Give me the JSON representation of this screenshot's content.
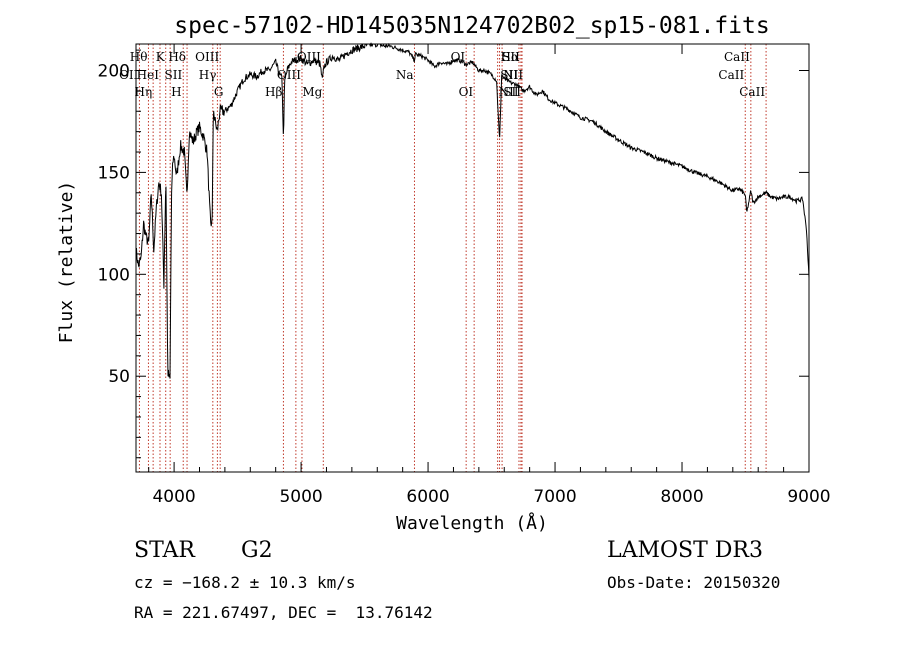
{
  "chart_data": {
    "type": "line",
    "title": "spec-57102-HD145035N124702B02_sp15-081.fits",
    "xlabel": "Wavelength (Å)",
    "ylabel": "Flux (relative)",
    "xlim": [
      3700,
      9000
    ],
    "ylim": [
      3,
      213
    ],
    "xticks": [
      4000,
      5000,
      6000,
      7000,
      8000,
      9000
    ],
    "yticks": [
      50,
      100,
      150,
      200
    ],
    "grid": false,
    "series": [
      {
        "name": "flux",
        "x": [
          3700,
          3720,
          3740,
          3760,
          3780,
          3800,
          3820,
          3840,
          3860,
          3880,
          3900,
          3920,
          3935,
          3950,
          3968,
          3980,
          3990,
          4000,
          4020,
          4050,
          4080,
          4101,
          4120,
          4150,
          4180,
          4200,
          4230,
          4260,
          4290,
          4300,
          4310,
          4320,
          4340,
          4360,
          4400,
          4450,
          4500,
          4550,
          4600,
          4650,
          4700,
          4750,
          4800,
          4830,
          4850,
          4861,
          4870,
          4890,
          4920,
          4950,
          5000,
          5050,
          5100,
          5150,
          5167,
          5175,
          5183,
          5200,
          5250,
          5300,
          5350,
          5400,
          5450,
          5500,
          5550,
          5600,
          5650,
          5700,
          5750,
          5800,
          5850,
          5893,
          5900,
          5950,
          6000,
          6050,
          6100,
          6150,
          6200,
          6250,
          6300,
          6350,
          6400,
          6450,
          6500,
          6540,
          6563,
          6580,
          6600,
          6650,
          6700,
          6750,
          6800,
          6850,
          6900,
          6950,
          7000,
          7100,
          7200,
          7300,
          7400,
          7500,
          7600,
          7700,
          7800,
          7900,
          8000,
          8100,
          8200,
          8300,
          8400,
          8450,
          8498,
          8510,
          8542,
          8560,
          8600,
          8662,
          8680,
          8700,
          8750,
          8800,
          8850,
          8900,
          8950,
          8980,
          9000
        ],
        "values": [
          112,
          104,
          108,
          125,
          118,
          115,
          140,
          112,
          132,
          145,
          140,
          95,
          150,
          52,
          48,
          140,
          155,
          158,
          148,
          163,
          160,
          138,
          170,
          165,
          170,
          172,
          168,
          160,
          120,
          130,
          182,
          176,
          170,
          180,
          180,
          183,
          190,
          196,
          198,
          197,
          200,
          200,
          204,
          198,
          196,
          165,
          194,
          200,
          204,
          205,
          206,
          203,
          205,
          203,
          195,
          199,
          202,
          204,
          207,
          205,
          208,
          210,
          211,
          212,
          213,
          213,
          212,
          212,
          211,
          210,
          209,
          205,
          208,
          207,
          205,
          202,
          204,
          203,
          205,
          205,
          203,
          204,
          200,
          200,
          198,
          195,
          165,
          198,
          196,
          194,
          193,
          190,
          192,
          188,
          190,
          186,
          184,
          181,
          177,
          175,
          170,
          166,
          162,
          160,
          157,
          155,
          153,
          150,
          148,
          145,
          141,
          142,
          139,
          130,
          141,
          135,
          138,
          140,
          139,
          138,
          137,
          138,
          138,
          136,
          137,
          122,
          98
        ]
      }
    ],
    "lines": [
      {
        "name": "OII",
        "x": 3727,
        "row": 1,
        "side": "left"
      },
      {
        "name": "Hθ",
        "x": 3798,
        "row": 0,
        "side": "left"
      },
      {
        "name": "Hη",
        "x": 3835,
        "row": 2,
        "side": "left"
      },
      {
        "name": "HeI",
        "x": 3889,
        "row": 1,
        "side": "left"
      },
      {
        "name": "K",
        "x": 3934,
        "row": 0,
        "side": "left"
      },
      {
        "name": "SII",
        "x": 4072,
        "row": 1,
        "side": "left"
      },
      {
        "name": "H",
        "x": 3969,
        "row": 2,
        "side": "right"
      },
      {
        "name": "Hδ",
        "x": 4102,
        "row": 0,
        "side": "left"
      },
      {
        "name": "G",
        "x": 4305,
        "row": 2,
        "side": "right"
      },
      {
        "name": "Hγ",
        "x": 4341,
        "row": 1,
        "side": "left"
      },
      {
        "name": "OIII",
        "x": 4363,
        "row": 0,
        "side": "left"
      },
      {
        "name": "Hβ",
        "x": 4861,
        "row": 2,
        "side": "left"
      },
      {
        "name": "OIII",
        "x": 4959,
        "row": 0,
        "side": "right"
      },
      {
        "name": "OIII",
        "x": 5007,
        "row": 1,
        "side": "left"
      },
      {
        "name": "Mg",
        "x": 5175,
        "row": 2,
        "side": "left"
      },
      {
        "name": "Na",
        "x": 5893,
        "row": 1,
        "side": "left"
      },
      {
        "name": "OI",
        "x": 6300,
        "row": 0,
        "side": "left"
      },
      {
        "name": "OI",
        "x": 6363,
        "row": 2,
        "side": "left"
      },
      {
        "name": "NII",
        "x": 6548,
        "row": 2,
        "side": "right"
      },
      {
        "name": "Hα",
        "x": 6563,
        "row": 0,
        "side": "right"
      },
      {
        "name": "NII",
        "x": 6583,
        "row": 1,
        "side": "right"
      },
      {
        "name": "SII",
        "x": 6716,
        "row": 1,
        "side": "left"
      },
      {
        "name": "SII",
        "x": 6731,
        "row": 0,
        "side": "left"
      },
      {
        "name": "SII",
        "x": 6740,
        "row": 2,
        "side": "left"
      },
      {
        "name": "CaII",
        "x": 8498,
        "row": 1,
        "side": "left"
      },
      {
        "name": "CaII",
        "x": 8542,
        "row": 0,
        "side": "left"
      },
      {
        "name": "CaII",
        "x": 8662,
        "row": 2,
        "side": "left"
      }
    ]
  },
  "info": {
    "object_type": "STAR",
    "subclass": "G2",
    "survey": "LAMOST DR3",
    "redshift_line": "cz = −168.2 ± 10.3 km/s",
    "obs_date": "Obs-Date: 20150320",
    "coords": "RA = 221.67497, DEC =  13.76142"
  },
  "colors": {
    "spectrum": "#000000",
    "line_marker": "#c0392b",
    "axes": "#000000",
    "background": "#ffffff"
  }
}
